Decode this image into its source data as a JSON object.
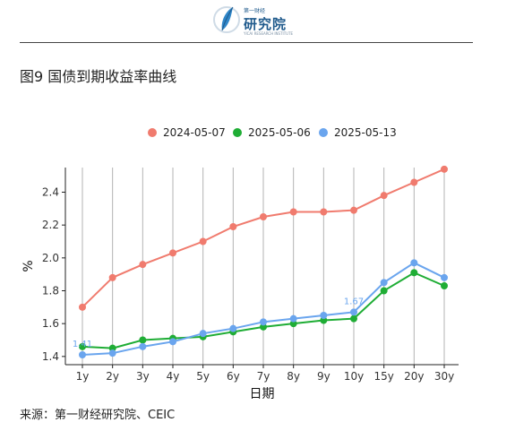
{
  "header": {
    "logo_small": "第一财经",
    "logo_title": "研究院",
    "logo_tag": "YICAI RESEARCH INSTITUTE",
    "colors": {
      "logo_blue": "#1f5a8c",
      "logo_leaf": "#2f86c8"
    }
  },
  "figure_title": "图9 国债到期收益率曲线",
  "source": "来源：第一财经研究院、CEIC",
  "chart_data": {
    "type": "line",
    "title": "图9 国债到期收益率曲线",
    "xlabel": "日期",
    "ylabel": "%",
    "categories": [
      "1y",
      "2y",
      "3y",
      "4y",
      "5y",
      "6y",
      "7y",
      "8y",
      "9y",
      "10y",
      "15y",
      "20y",
      "30y"
    ],
    "ylim": [
      1.35,
      2.55
    ],
    "yticks": [
      "1.4",
      "1.6",
      "1.8",
      "2.0",
      "2.2",
      "2.4"
    ],
    "grid": "vertical",
    "legend_position": "top",
    "series": [
      {
        "name": "2024-05-07",
        "color": "#f07b6e",
        "values": [
          1.7,
          1.88,
          1.96,
          2.03,
          2.1,
          2.19,
          2.25,
          2.28,
          2.28,
          2.29,
          2.38,
          2.46,
          2.54
        ]
      },
      {
        "name": "2025-05-06",
        "color": "#1fad35",
        "values": [
          1.46,
          1.45,
          1.5,
          1.51,
          1.52,
          1.55,
          1.58,
          1.6,
          1.62,
          1.63,
          1.8,
          1.91,
          1.83
        ]
      },
      {
        "name": "2025-05-13",
        "color": "#6aa5ee",
        "values": [
          1.41,
          1.42,
          1.46,
          1.49,
          1.54,
          1.57,
          1.61,
          1.63,
          1.65,
          1.67,
          1.85,
          1.97,
          1.88
        ]
      }
    ],
    "annotations": [
      {
        "series": 2,
        "index": 0,
        "text": "1.41"
      },
      {
        "series": 2,
        "index": 9,
        "text": "1.67"
      }
    ]
  }
}
